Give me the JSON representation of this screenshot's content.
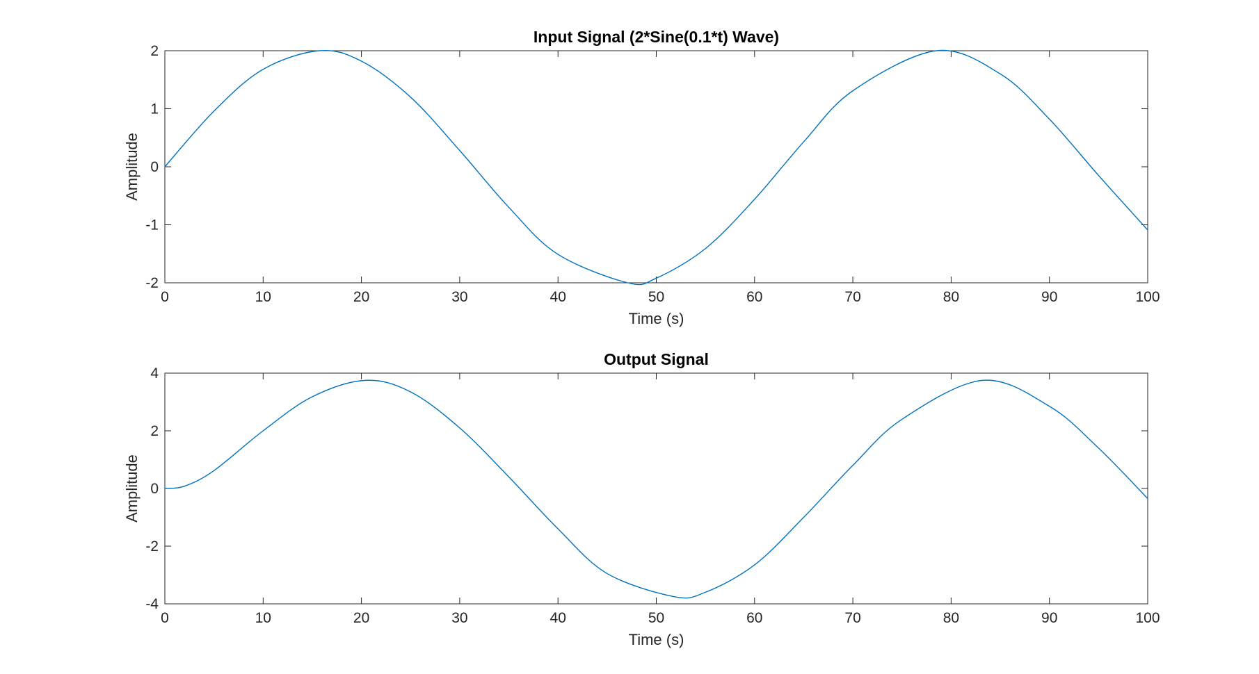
{
  "chart_data": [
    {
      "type": "line",
      "title": "Input Signal (2*Sine(0.1*t) Wave)",
      "xlabel": "Time (s)",
      "ylabel": "Amplitude",
      "xlim": [
        0,
        100
      ],
      "ylim": [
        -2,
        2
      ],
      "xticks": [
        0,
        10,
        20,
        30,
        40,
        50,
        60,
        70,
        80,
        90,
        100
      ],
      "yticks": [
        -2,
        -1,
        0,
        1,
        2
      ],
      "grid": false,
      "series": [
        {
          "color": "#0072BD",
          "x": [
            0,
            5,
            10,
            15.7,
            20,
            25,
            30,
            35,
            40,
            47.1,
            50,
            55,
            60,
            65,
            70,
            78.5,
            85,
            90,
            95,
            100
          ],
          "y": [
            0,
            0.96,
            1.68,
            2.0,
            1.82,
            1.2,
            0.28,
            -0.7,
            -1.51,
            -2.0,
            -1.92,
            -1.41,
            -0.56,
            0.43,
            1.31,
            2.0,
            1.6,
            0.82,
            -0.15,
            -1.09
          ]
        }
      ]
    },
    {
      "type": "line",
      "title": "Output Signal",
      "xlabel": "Time (s)",
      "ylabel": "Amplitude",
      "xlim": [
        0,
        100
      ],
      "ylim": [
        -4,
        4
      ],
      "xticks": [
        0,
        10,
        20,
        30,
        40,
        50,
        60,
        70,
        80,
        90,
        100
      ],
      "yticks": [
        -4,
        -2,
        0,
        2,
        4
      ],
      "grid": false,
      "series": [
        {
          "color": "#0072BD",
          "x": [
            0,
            2,
            5,
            10,
            15,
            20.4,
            25,
            30,
            35,
            40,
            45,
            51.8,
            55,
            60,
            65,
            70,
            75,
            83.2,
            90,
            95,
            100
          ],
          "y": [
            0,
            0.08,
            0.62,
            2.0,
            3.18,
            3.75,
            3.35,
            2.1,
            0.4,
            -1.4,
            -2.95,
            -3.75,
            -3.6,
            -2.65,
            -1.0,
            0.8,
            2.4,
            3.75,
            2.85,
            1.4,
            -0.35
          ]
        }
      ]
    }
  ]
}
